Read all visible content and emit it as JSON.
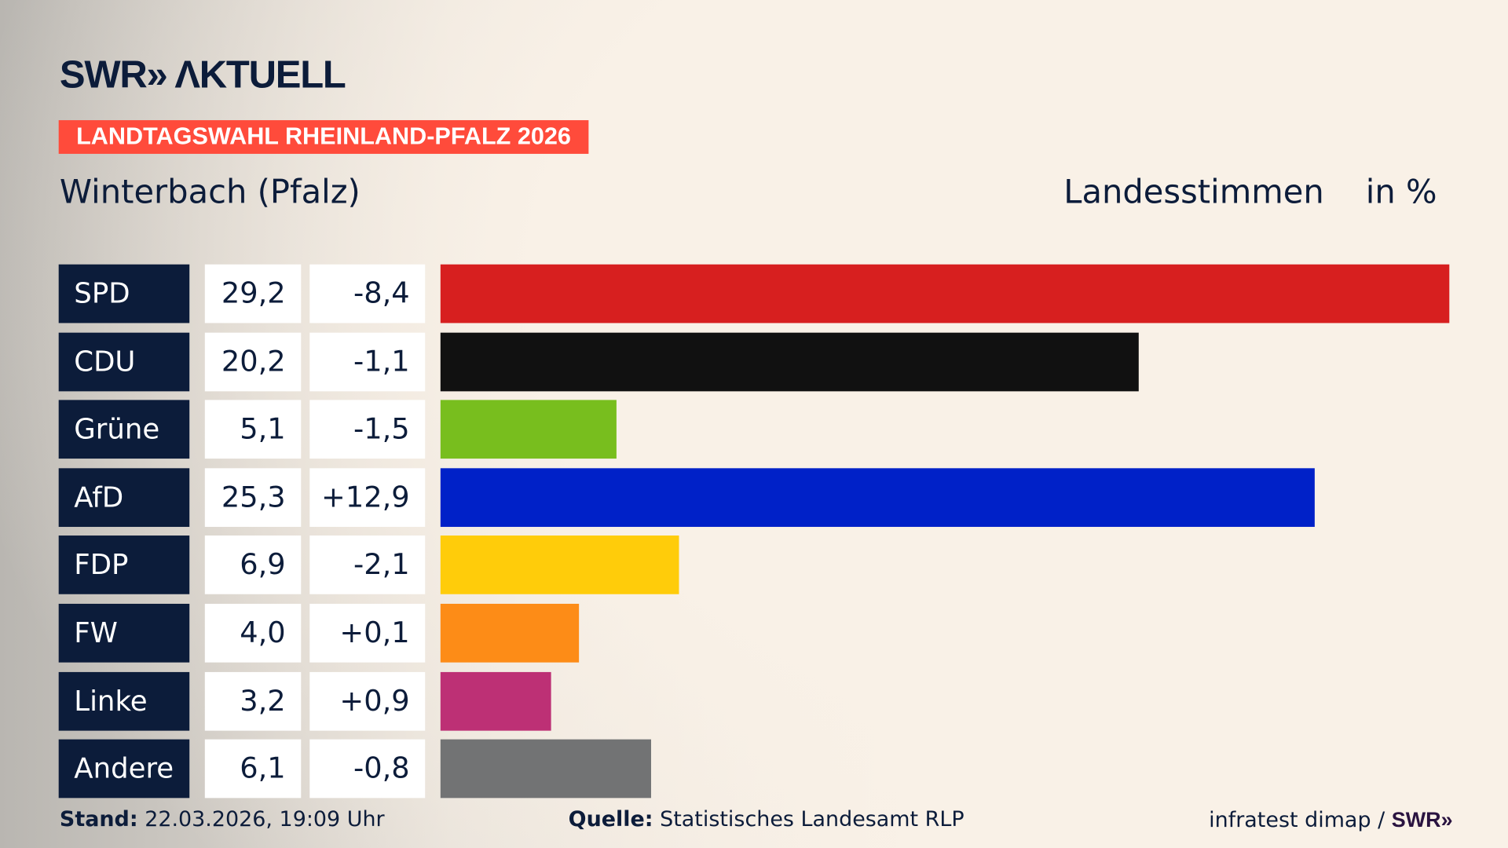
{
  "header": {
    "logo": "SWR AKTUELL",
    "banner": "LANDTAGSWAHL RHEINLAND-PFALZ 2026",
    "title": "Winterbach (Pfalz)",
    "subtitle": "Landesstimmen",
    "unit": "in %"
  },
  "chart_data": {
    "type": "bar",
    "orientation": "horizontal",
    "categories": [
      "SPD",
      "CDU",
      "Grüne",
      "AfD",
      "FDP",
      "FW",
      "Linke",
      "Andere"
    ],
    "values": [
      29.2,
      20.2,
      5.1,
      25.3,
      6.9,
      4.0,
      3.2,
      6.1
    ],
    "value_labels": [
      "29,2",
      "20,2",
      "5,1",
      "25,3",
      "6,9",
      "4,0",
      "3,2",
      "6,1"
    ],
    "diff_labels": [
      "-8,4",
      "-1,1",
      "-1,5",
      "+12,9",
      "-2,1",
      "+0,1",
      "+0,9",
      "-0,8"
    ],
    "colors": [
      "#d71f1f",
      "#111111",
      "#78be1e",
      "#0021c8",
      "#ffcc0a",
      "#fd8c17",
      "#bd3075",
      "#727374"
    ],
    "xlim": [
      0,
      29.2
    ],
    "grid": false
  },
  "footer": {
    "stand_label": "Stand:",
    "stand": "22.03.2026, 19:09 Uhr",
    "source_label": "Quelle:",
    "source": "Statistisches Landesamt RLP",
    "credit": "infratest dimap / ",
    "credit_logo": "SWR»"
  }
}
